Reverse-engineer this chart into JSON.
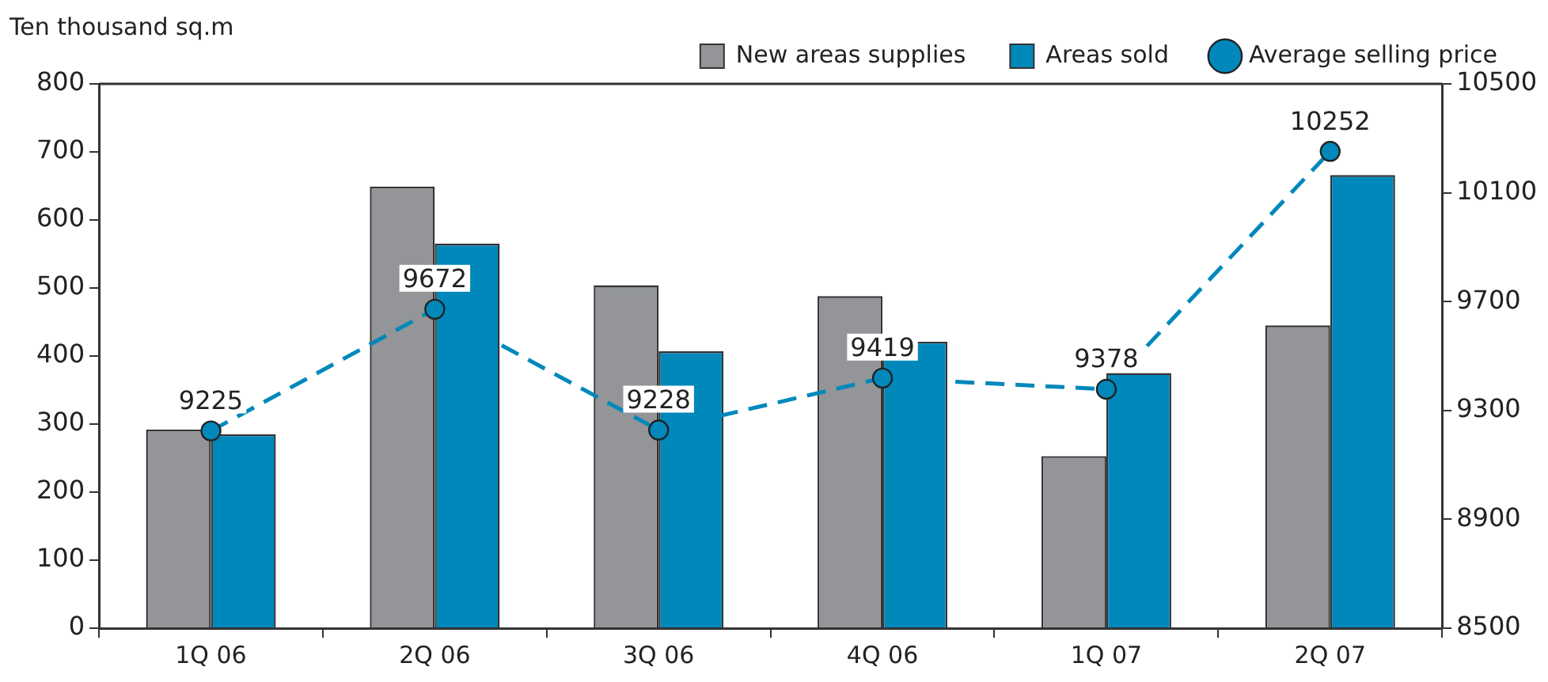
{
  "chart_data": {
    "type": "bar",
    "ylabel": "Ten thousand sq.m",
    "categories": [
      "1Q 06",
      "2Q 06",
      "3Q 06",
      "4Q 06",
      "1Q 07",
      "2Q 07"
    ],
    "series": [
      {
        "name": "New areas supplies",
        "color": "#939598",
        "values": [
          292,
          649,
          504,
          488,
          253,
          445
        ]
      },
      {
        "name": "Areas sold",
        "color": "#0088bb",
        "values": [
          285,
          565,
          407,
          421,
          375,
          666
        ]
      },
      {
        "name": "Average selling price",
        "type": "line",
        "axis": "y2",
        "color": "#0088bb",
        "marker": "circle",
        "line_style": "dashed",
        "values": [
          9225,
          9672,
          9228,
          9419,
          9378,
          10252
        ],
        "value_labels": [
          "9225",
          "9672",
          "9228",
          "9419",
          "9378",
          "10252"
        ]
      }
    ],
    "ylim": [
      0,
      800
    ],
    "yticks": [
      0,
      100,
      200,
      300,
      400,
      500,
      600,
      700,
      800
    ],
    "y2lim": [
      8500,
      10500
    ],
    "y2ticks": [
      8500,
      8900,
      9300,
      9700,
      10100,
      10500
    ],
    "grid": false,
    "legend": "top"
  }
}
